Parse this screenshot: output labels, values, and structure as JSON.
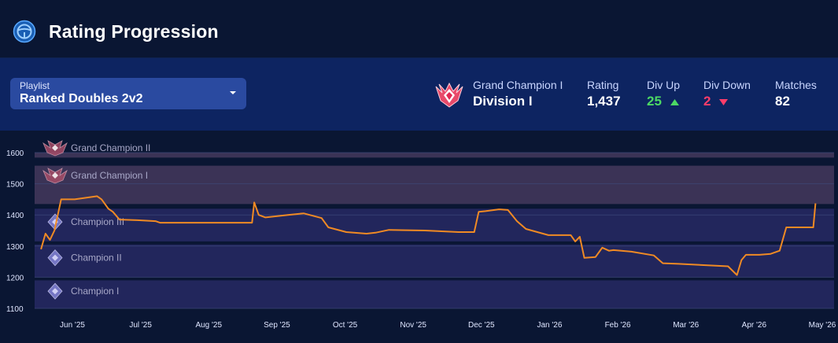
{
  "header": {
    "title": "Rating Progression",
    "icon": "steering-wheel-icon"
  },
  "playlist": {
    "label": "Playlist",
    "value": "Ranked Doubles 2v2"
  },
  "rank": {
    "tier": "Grand Champion I",
    "division": "Division I",
    "emblem": "grand-champion-icon"
  },
  "stats": {
    "rating_label": "Rating",
    "rating_value": "1,437",
    "divup_label": "Div Up",
    "divup_value": "25",
    "divdown_label": "Div Down",
    "divdown_value": "2",
    "matches_label": "Matches",
    "matches_value": "82"
  },
  "colors": {
    "line": "#f08a24",
    "green": "#4cd964",
    "red": "#ff3d6a",
    "band_gc": "#3b3356",
    "band_champ": "#22265c"
  },
  "chart_data": {
    "type": "line",
    "ylim": [
      1100,
      1650
    ],
    "yticks": [
      1100,
      1200,
      1300,
      1400,
      1500,
      1600
    ],
    "xticks": [
      "Jun '25",
      "Jul '25",
      "Aug '25",
      "Sep '25",
      "Oct '25",
      "Nov '25",
      "Dec '25",
      "Jan '26",
      "Feb '26",
      "Mar '26",
      "Apr '26",
      "May '26"
    ],
    "rank_bands": [
      {
        "name": "Grand Champion II",
        "from": 1584,
        "to": 1600,
        "kind": "gc"
      },
      {
        "name": "Grand Champion I",
        "from": 1435,
        "to": 1558,
        "kind": "gc"
      },
      {
        "name": "Champion III",
        "from": 1315,
        "to": 1420,
        "kind": "champ"
      },
      {
        "name": "Champion II",
        "from": 1200,
        "to": 1305,
        "kind": "champ"
      },
      {
        "name": "Champion I",
        "from": 1100,
        "to": 1190,
        "kind": "champ"
      }
    ],
    "series": [
      {
        "x": [
          "2025-05-18",
          "2025-05-20",
          "2025-05-22",
          "2025-05-24",
          "2025-05-27",
          "2025-06-02",
          "2025-06-12",
          "2025-06-14",
          "2025-06-17",
          "2025-06-19",
          "2025-06-22",
          "2025-06-30",
          "2025-07-08",
          "2025-07-10",
          "2025-08-10",
          "2025-08-20",
          "2025-08-21",
          "2025-08-23",
          "2025-08-26",
          "2025-09-05",
          "2025-09-12",
          "2025-09-20",
          "2025-09-23",
          "2025-10-01",
          "2025-10-10",
          "2025-10-14",
          "2025-10-20",
          "2025-11-05",
          "2025-11-20",
          "2025-11-27",
          "2025-11-29",
          "2025-12-02",
          "2025-12-08",
          "2025-12-12",
          "2025-12-16",
          "2025-12-20",
          "2025-12-30",
          "2026-01-09",
          "2026-01-11",
          "2026-01-13",
          "2026-01-15",
          "2026-01-20",
          "2026-01-23",
          "2026-01-26",
          "2026-01-28",
          "2026-02-05",
          "2026-02-15",
          "2026-02-19",
          "2026-02-26",
          "2026-03-20",
          "2026-03-24",
          "2026-03-26",
          "2026-03-28",
          "2026-04-03",
          "2026-04-08",
          "2026-04-12",
          "2026-04-15",
          "2026-04-27",
          "2026-04-28"
        ],
        "values": [
          1290,
          1340,
          1320,
          1350,
          1450,
          1450,
          1460,
          1450,
          1420,
          1410,
          1385,
          1383,
          1380,
          1375,
          1375,
          1375,
          1440,
          1400,
          1392,
          1400,
          1405,
          1390,
          1360,
          1345,
          1340,
          1343,
          1352,
          1350,
          1345,
          1345,
          1410,
          1412,
          1418,
          1416,
          1380,
          1355,
          1335,
          1335,
          1315,
          1330,
          1262,
          1265,
          1295,
          1285,
          1287,
          1282,
          1270,
          1245,
          1243,
          1235,
          1207,
          1255,
          1272,
          1272,
          1275,
          1285,
          1360,
          1360,
          1437
        ]
      }
    ]
  }
}
